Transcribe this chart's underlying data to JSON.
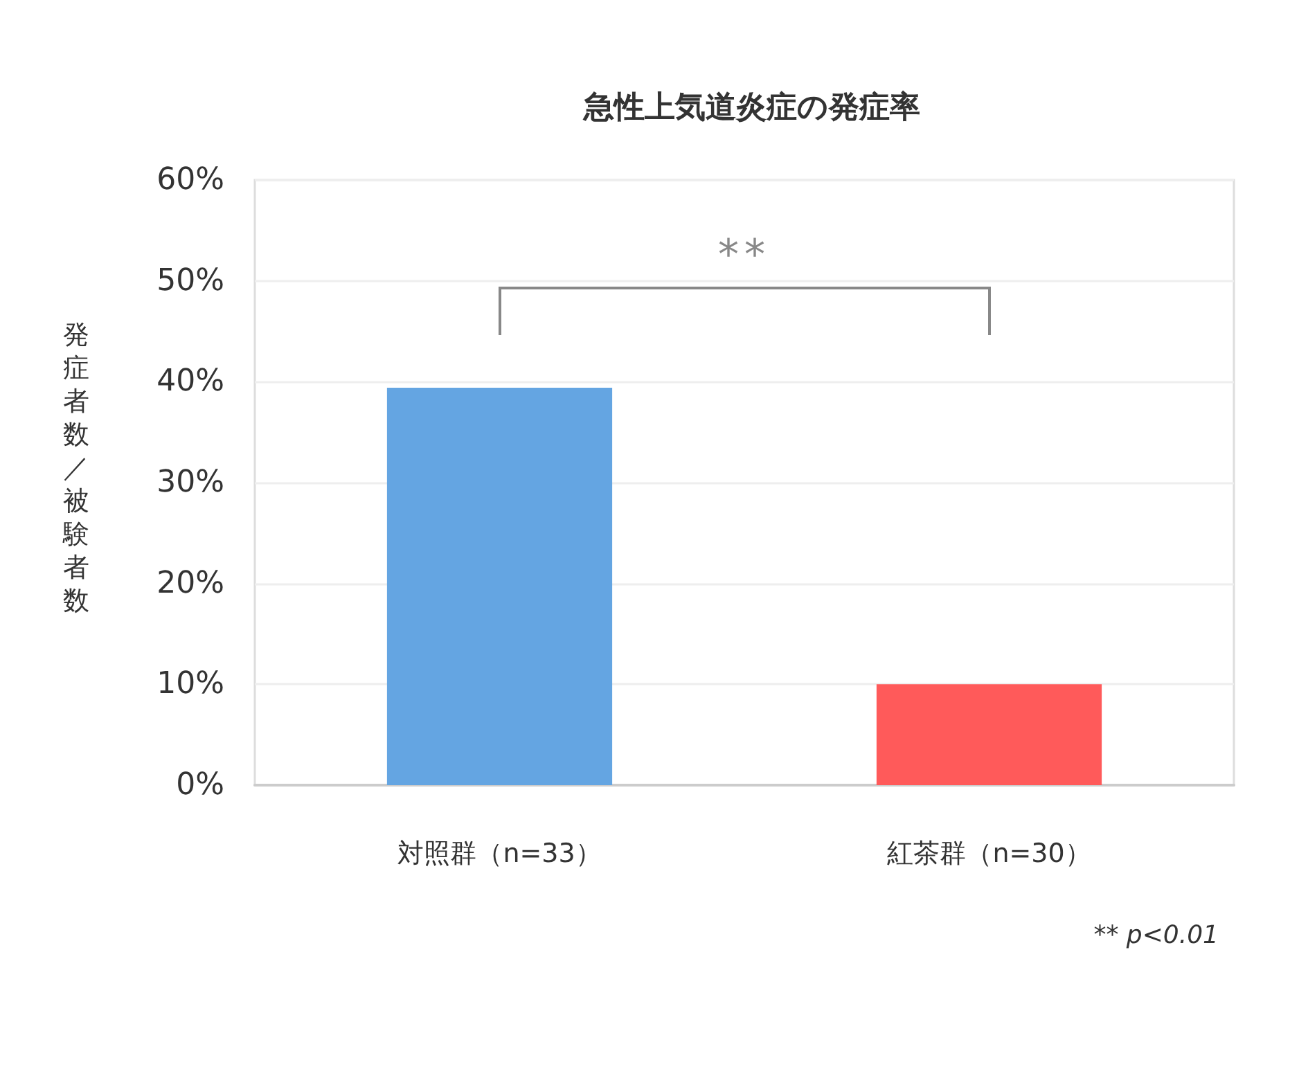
{
  "chart_data": {
    "type": "bar",
    "title": "急性上気道炎症の発症率",
    "ylabel": "発症者数／被験者数",
    "categories": [
      "対照群（n=33）",
      "紅茶群（n=30）"
    ],
    "values": [
      39.4,
      10
    ],
    "colors": [
      "#64a5e2",
      "#ff5a5a"
    ],
    "ylim": [
      0,
      60
    ],
    "yticks": [
      {
        "value": 0,
        "label": "0%"
      },
      {
        "value": 10,
        "label": "10%"
      },
      {
        "value": 20,
        "label": "20%"
      },
      {
        "value": 30,
        "label": "30%"
      },
      {
        "value": 40,
        "label": "40%"
      },
      {
        "value": 50,
        "label": "50%"
      },
      {
        "value": 60,
        "label": "60%"
      }
    ],
    "grid": "y",
    "annotations": [
      "**",
      "** p<0.01"
    ]
  }
}
